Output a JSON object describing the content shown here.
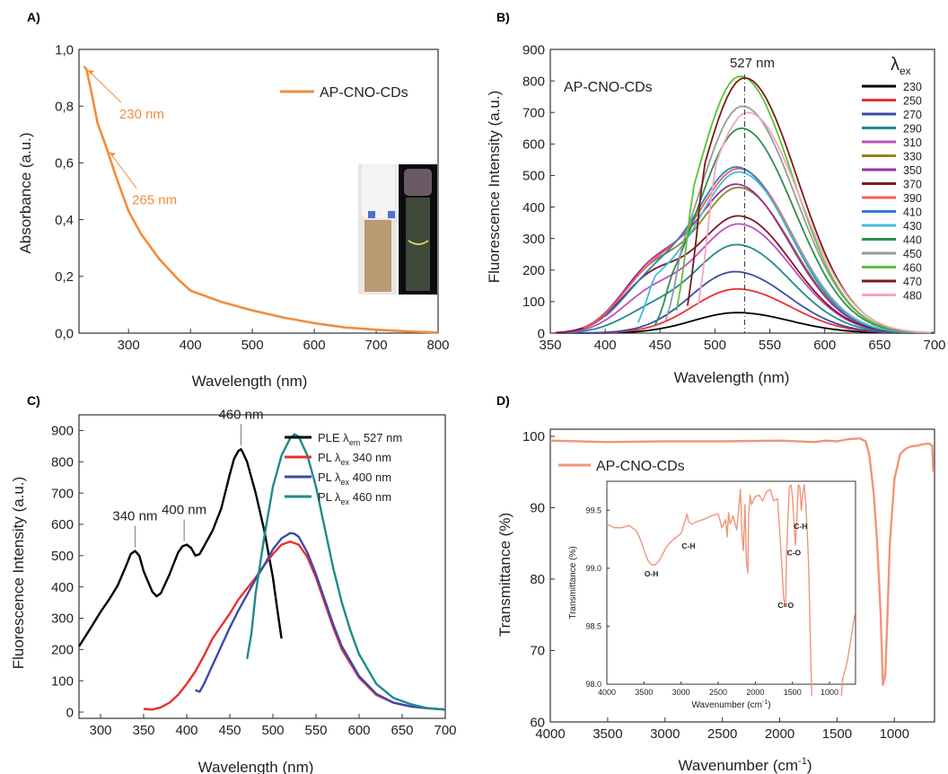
{
  "chart_data": [
    {
      "panel": "A)",
      "type": "line",
      "xlabel": "Wavelength (nm)",
      "ylabel": "Absorbance (a.u.)",
      "xlim": [
        220,
        800
      ],
      "ylim": [
        0,
        1.0
      ],
      "xticks": [
        200,
        300,
        400,
        500,
        600,
        700,
        800
      ],
      "yticks": [
        0.0,
        0.2,
        0.4,
        0.6,
        0.8,
        1.0
      ],
      "ytick_labels": [
        "0,0",
        "0,2",
        "0,4",
        "0,6",
        "0,8",
        "1,0"
      ],
      "grid": false,
      "legend": "top-right",
      "color": "#F28C3A",
      "series": [
        {
          "name": "AP-CNO-CDs",
          "x": [
            228,
            232,
            240,
            250,
            260,
            265,
            280,
            300,
            320,
            350,
            380,
            400,
            450,
            500,
            550,
            600,
            650,
            700,
            750,
            800
          ],
          "y": [
            0.94,
            0.93,
            0.85,
            0.74,
            0.68,
            0.65,
            0.55,
            0.43,
            0.35,
            0.26,
            0.19,
            0.15,
            0.11,
            0.08,
            0.055,
            0.035,
            0.02,
            0.012,
            0.006,
            0.002
          ]
        }
      ],
      "annotations": [
        {
          "text": "230 nm",
          "x": 230,
          "y": 0.94
        },
        {
          "text": "265 nm",
          "x": 265,
          "y": 0.65
        }
      ],
      "inset": "photo of cuvettes"
    },
    {
      "panel": "B)",
      "type": "line",
      "xlabel": "Wavelength (nm)",
      "ylabel": "Fluorescence Intensity (a.u.)",
      "xlim": [
        350,
        700
      ],
      "ylim": [
        0,
        900
      ],
      "xticks": [
        350,
        400,
        450,
        500,
        550,
        600,
        650,
        700
      ],
      "yticks": [
        0,
        100,
        200,
        300,
        400,
        500,
        600,
        700,
        800,
        900
      ],
      "grid": false,
      "legend": "right",
      "legend_title_main": "λ",
      "legend_title_sub": "ex",
      "label": "AP-CNO-CDs",
      "annotation": "527 nm",
      "vline_x": 527,
      "series": [
        {
          "name": "230",
          "color": "#000000",
          "start": 355,
          "peak": 520,
          "amp": 65,
          "shoulder": 0
        },
        {
          "name": "250",
          "color": "#E8312F",
          "start": 355,
          "peak": 520,
          "amp": 140,
          "shoulder": 0
        },
        {
          "name": "270",
          "color": "#3B4BAA",
          "start": 355,
          "peak": 518,
          "amp": 195,
          "shoulder": 0
        },
        {
          "name": "290",
          "color": "#1F8A8A",
          "start": 355,
          "peak": 520,
          "amp": 280,
          "shoulder": 0.2
        },
        {
          "name": "310",
          "color": "#C04FC0",
          "start": 355,
          "peak": 522,
          "amp": 345,
          "shoulder": 0.3
        },
        {
          "name": "330",
          "color": "#8A8A1F",
          "start": 355,
          "peak": 522,
          "amp": 460,
          "shoulder": 0.35
        },
        {
          "name": "350",
          "color": "#9A2FA0",
          "start": 355,
          "peak": 520,
          "amp": 470,
          "shoulder": 0.35
        },
        {
          "name": "370",
          "color": "#7B1A2A",
          "start": 355,
          "peak": 522,
          "amp": 370,
          "shoulder": 0.4
        },
        {
          "name": "390",
          "color": "#F0605A",
          "start": 380,
          "peak": 522,
          "amp": 520,
          "shoulder": 0.3
        },
        {
          "name": "410",
          "color": "#2F7FC8",
          "start": 400,
          "peak": 520,
          "amp": 525,
          "shoulder": 0.25
        },
        {
          "name": "430",
          "color": "#3FC0D8",
          "start": 430,
          "peak": 522,
          "amp": 510,
          "shoulder": 0.2
        },
        {
          "name": "440",
          "color": "#2E8F4E",
          "start": 445,
          "peak": 524,
          "amp": 650,
          "shoulder": 0
        },
        {
          "name": "450",
          "color": "#999999",
          "start": 455,
          "peak": 525,
          "amp": 720,
          "shoulder": 0
        },
        {
          "name": "460",
          "color": "#5BC23A",
          "start": 465,
          "peak": 523,
          "amp": 815,
          "shoulder": 0
        },
        {
          "name": "470",
          "color": "#7A1A1A",
          "start": 475,
          "peak": 527,
          "amp": 810,
          "shoulder": 0
        },
        {
          "name": "480",
          "color": "#F4A6C0",
          "start": 485,
          "peak": 530,
          "amp": 700,
          "shoulder": 0
        }
      ]
    },
    {
      "panel": "C)",
      "type": "line",
      "xlabel": "Wavelength (nm)",
      "ylabel": "Fluorescence Intensity (a.u.)",
      "xlim": [
        275,
        700
      ],
      "ylim": [
        -20,
        950
      ],
      "xticks": [
        300,
        350,
        400,
        450,
        500,
        550,
        600,
        650,
        700
      ],
      "yticks": [
        0,
        100,
        200,
        300,
        400,
        500,
        600,
        700,
        800,
        900
      ],
      "grid": false,
      "legend": "top-right",
      "annotations": [
        {
          "text": "340 nm",
          "x": 340,
          "y": 515
        },
        {
          "text": "400 nm",
          "x": 397,
          "y": 535
        },
        {
          "text": "460 nm",
          "x": 463,
          "y": 840
        }
      ],
      "series": [
        {
          "name_main": "PLE λ",
          "name_sub": "em",
          "name_tail": " 527 nm",
          "color": "#000000",
          "x": [
            275,
            290,
            300,
            310,
            320,
            330,
            335,
            340,
            345,
            350,
            360,
            365,
            370,
            380,
            390,
            395,
            400,
            405,
            410,
            415,
            420,
            430,
            440,
            450,
            455,
            460,
            463,
            465,
            470,
            480,
            490,
            500,
            505,
            510
          ],
          "y": [
            210,
            275,
            320,
            360,
            405,
            470,
            505,
            515,
            500,
            450,
            385,
            370,
            380,
            440,
            510,
            530,
            535,
            525,
            500,
            505,
            530,
            580,
            650,
            760,
            810,
            835,
            840,
            830,
            800,
            700,
            580,
            430,
            330,
            235
          ]
        },
        {
          "name_main": "PL λ",
          "name_sub": "ex",
          "name_tail": " 340 nm",
          "color": "#E8312F",
          "x": [
            350,
            360,
            370,
            380,
            390,
            400,
            410,
            420,
            430,
            440,
            450,
            460,
            470,
            480,
            490,
            500,
            510,
            520,
            530,
            540,
            550,
            560,
            570,
            580,
            600,
            620,
            640,
            660,
            680,
            700
          ],
          "y": [
            10,
            8,
            15,
            30,
            55,
            90,
            130,
            180,
            235,
            275,
            315,
            360,
            395,
            430,
            470,
            505,
            535,
            545,
            535,
            495,
            430,
            350,
            270,
            200,
            110,
            55,
            30,
            18,
            12,
            8
          ]
        },
        {
          "name_main": "PL λ",
          "name_sub": "ex",
          "name_tail": " 400 nm",
          "color": "#3B4BAA",
          "x": [
            410,
            415,
            420,
            430,
            440,
            450,
            460,
            470,
            480,
            490,
            500,
            510,
            520,
            525,
            530,
            540,
            550,
            560,
            570,
            580,
            600,
            620,
            640,
            660,
            680,
            700
          ],
          "y": [
            70,
            65,
            90,
            150,
            210,
            270,
            325,
            375,
            425,
            470,
            520,
            555,
            572,
            570,
            560,
            510,
            440,
            360,
            280,
            210,
            115,
            58,
            30,
            18,
            12,
            8
          ]
        },
        {
          "name_main": "PL λ",
          "name_sub": "ex",
          "name_tail": " 460 nm",
          "color": "#1F8A8A",
          "x": [
            470,
            475,
            480,
            490,
            500,
            510,
            520,
            525,
            530,
            540,
            550,
            560,
            570,
            580,
            590,
            600,
            620,
            640,
            660,
            680,
            700
          ],
          "y": [
            170,
            250,
            380,
            560,
            720,
            820,
            875,
            888,
            880,
            820,
            720,
            590,
            460,
            350,
            260,
            185,
            90,
            45,
            25,
            12,
            8
          ]
        }
      ]
    },
    {
      "panel": "D)",
      "type": "line",
      "xlabel_main": "Wavenumber (cm",
      "xlabel_sup": "-1",
      "xlabel_tail": ")",
      "ylabel": "Transmittance (%)",
      "xlim": [
        4000,
        650
      ],
      "ylim": [
        60,
        101
      ],
      "xticks": [
        4000,
        3500,
        3000,
        2500,
        2000,
        1500,
        1000
      ],
      "yticks": [
        60,
        70,
        80,
        90,
        100
      ],
      "grid": false,
      "legend": "top-left",
      "color": "#F0957A",
      "series": [
        {
          "name": "AP-CNO-CDs",
          "x": [
            4000,
            3500,
            3000,
            2500,
            2000,
            1700,
            1600,
            1500,
            1400,
            1300,
            1250,
            1220,
            1180,
            1150,
            1120,
            1100,
            1080,
            1060,
            1040,
            1000,
            950,
            900,
            850,
            800,
            750,
            700,
            670,
            660
          ],
          "y": [
            99.4,
            99.2,
            99.3,
            99.3,
            99.4,
            99.2,
            99.4,
            99.3,
            99.6,
            99.7,
            99.3,
            97.5,
            92.0,
            85.0,
            75.0,
            65.2,
            66.5,
            75.0,
            85.0,
            94.0,
            97.5,
            98.3,
            98.6,
            98.7,
            98.9,
            99.0,
            98.7,
            95.0
          ]
        }
      ],
      "inset": {
        "xlabel_main": "Wavenumber (cm",
        "xlabel_sup": "-1",
        "xlabel_tail": ")",
        "ylabel": "Transmittance (%)",
        "xlim": [
          4000,
          650
        ],
        "ylim": [
          98.0,
          99.75
        ],
        "xticks": [
          4000,
          3500,
          3000,
          2500,
          2000,
          1500,
          1000
        ],
        "yticks": [
          98.0,
          98.5,
          99.0,
          99.5
        ],
        "ytick_labels": [
          "98.0",
          "98.5",
          "99.0",
          "99.5"
        ],
        "labels": [
          {
            "text": "O-H",
            "x": 3400,
            "y": 98.93
          },
          {
            "text": "C-H",
            "x": 2900,
            "y": 99.17
          },
          {
            "text": "C=O",
            "x": 1590,
            "y": 98.66
          },
          {
            "text": "C-O",
            "x": 1480,
            "y": 99.11
          },
          {
            "text": "C-H",
            "x": 1390,
            "y": 99.34
          }
        ],
        "series": [
          {
            "x": [
              4000,
              3900,
              3800,
              3700,
              3600,
              3550,
              3500,
              3450,
              3400,
              3350,
              3300,
              3250,
              3200,
              3150,
              3100,
              3000,
              2950,
              2920,
              2900,
              2850,
              2800,
              2700,
              2600,
              2500,
              2450,
              2400,
              2380,
              2360,
              2340,
              2300,
              2250,
              2200,
              2180,
              2160,
              2140,
              2120,
              2100,
              2090,
              2070,
              2050,
              2000,
              1950,
              1900,
              1850,
              1800,
              1750,
              1700,
              1680,
              1660,
              1640,
              1620,
              1600,
              1590,
              1580,
              1560,
              1540,
              1520,
              1500,
              1480,
              1460,
              1440,
              1420,
              1400,
              1380,
              1360,
              1340,
              1320,
              1300,
              1280,
              1260,
              1240
            ],
            "y": [
              99.38,
              99.35,
              99.35,
              99.37,
              99.32,
              99.25,
              99.16,
              99.07,
              99.03,
              99.03,
              99.06,
              99.12,
              99.18,
              99.22,
              99.25,
              99.3,
              99.4,
              99.47,
              99.4,
              99.38,
              99.4,
              99.42,
              99.45,
              99.47,
              99.35,
              99.42,
              99.27,
              99.48,
              99.38,
              99.45,
              99.33,
              99.68,
              99.3,
              99.15,
              99.55,
              99.05,
              98.96,
              99.45,
              99.63,
              99.55,
              99.62,
              99.63,
              99.58,
              99.66,
              99.68,
              99.58,
              99.6,
              99.4,
              99.2,
              99.0,
              98.75,
              98.67,
              98.75,
              99.1,
              99.45,
              99.7,
              99.72,
              99.62,
              99.4,
              99.2,
              99.45,
              99.72,
              99.7,
              99.5,
              99.65,
              99.72,
              99.55,
              99.3,
              99.0,
              98.4,
              97.9
            ]
          },
          {
            "x": [
              840,
              830,
              820,
              800,
              780,
              760,
              740,
              720,
              700,
              680,
              660
            ],
            "y": [
              97.9,
              98.0,
              98.05,
              98.1,
              98.15,
              98.2,
              98.28,
              98.36,
              98.44,
              98.52,
              98.6
            ]
          }
        ]
      }
    }
  ]
}
